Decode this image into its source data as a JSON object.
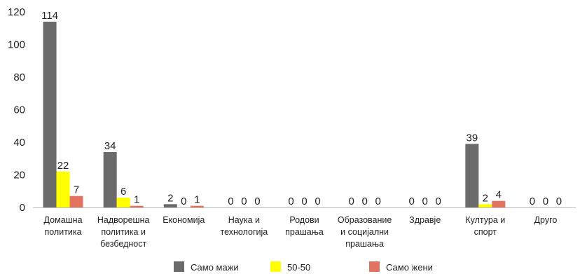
{
  "chart_data": {
    "type": "bar",
    "categories": [
      [
        "Домашна",
        "политика"
      ],
      [
        "Надворешна",
        "политика и",
        "безбедност"
      ],
      [
        "Економија"
      ],
      [
        "Наука и",
        "технологија"
      ],
      [
        "Родови",
        "прашања"
      ],
      [
        "Образование",
        "и социјални",
        "прашања"
      ],
      [
        "Здравје"
      ],
      [
        "Култура и",
        "спорт"
      ],
      [
        "Друго"
      ]
    ],
    "series": [
      {
        "name": "Само мажи",
        "color": "#6b6b6b",
        "values": [
          114,
          34,
          2,
          0,
          0,
          0,
          0,
          39,
          0
        ]
      },
      {
        "name": "50-50",
        "color": "#ffff00",
        "values": [
          22,
          6,
          0,
          0,
          0,
          0,
          0,
          2,
          0
        ]
      },
      {
        "name": "Само жени",
        "color": "#e2735f",
        "values": [
          7,
          1,
          1,
          0,
          0,
          0,
          0,
          4,
          0
        ]
      }
    ],
    "ylim": [
      0,
      120
    ],
    "yticks": [
      0,
      20,
      40,
      60,
      80,
      100,
      120
    ],
    "legend_position": "bottom",
    "grid": false
  }
}
